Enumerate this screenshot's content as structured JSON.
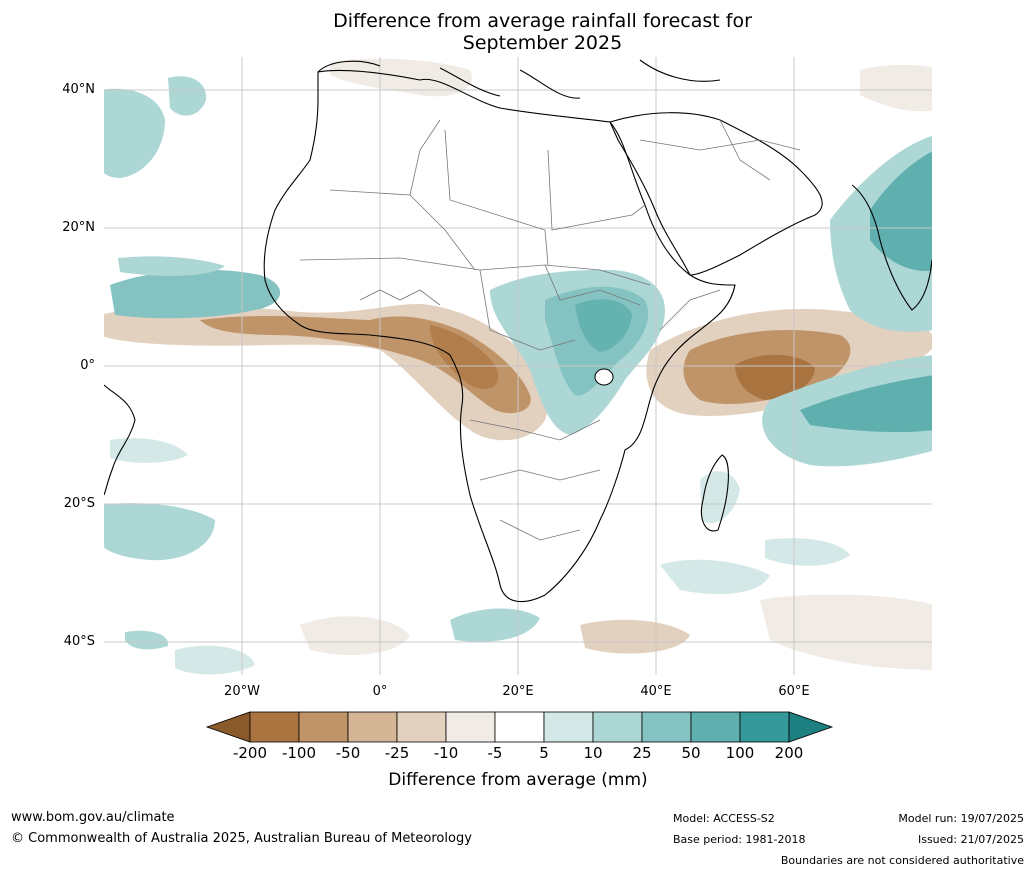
{
  "title": {
    "line1": "Difference from average rainfall forecast for",
    "line2": "September 2025"
  },
  "axes": {
    "lat_labels": [
      "40°N",
      "20°N",
      "0°",
      "20°S",
      "40°S"
    ],
    "lon_labels": [
      "20°W",
      "0°",
      "20°E",
      "40°E",
      "60°E"
    ]
  },
  "legend": {
    "ticks": [
      "-200",
      "-100",
      "-50",
      "-25",
      "-10",
      "-5",
      "5",
      "10",
      "25",
      "50",
      "100",
      "200"
    ],
    "colors": [
      "#8b5a2b",
      "#a9743f",
      "#c09469",
      "#d4b596",
      "#e3d1bf",
      "#f1ebe6",
      "#ffffff",
      "#d4e9e7",
      "#acd7d5",
      "#84c3c1",
      "#5eafad",
      "#35999a",
      "#1e7f80"
    ],
    "title": "Difference from average (mm)"
  },
  "footer": {
    "url": "www.bom.gov.au/climate",
    "copyright": "© Commonwealth of Australia 2025, Australian Bureau of Meteorology",
    "model": "Model: ACCESS-S2",
    "base_period": "Base period: 1981-2018",
    "model_run": "Model run: 19/07/2025",
    "issued": "Issued: 21/07/2025",
    "boundaries": "Boundaries are not considered authoritative"
  }
}
